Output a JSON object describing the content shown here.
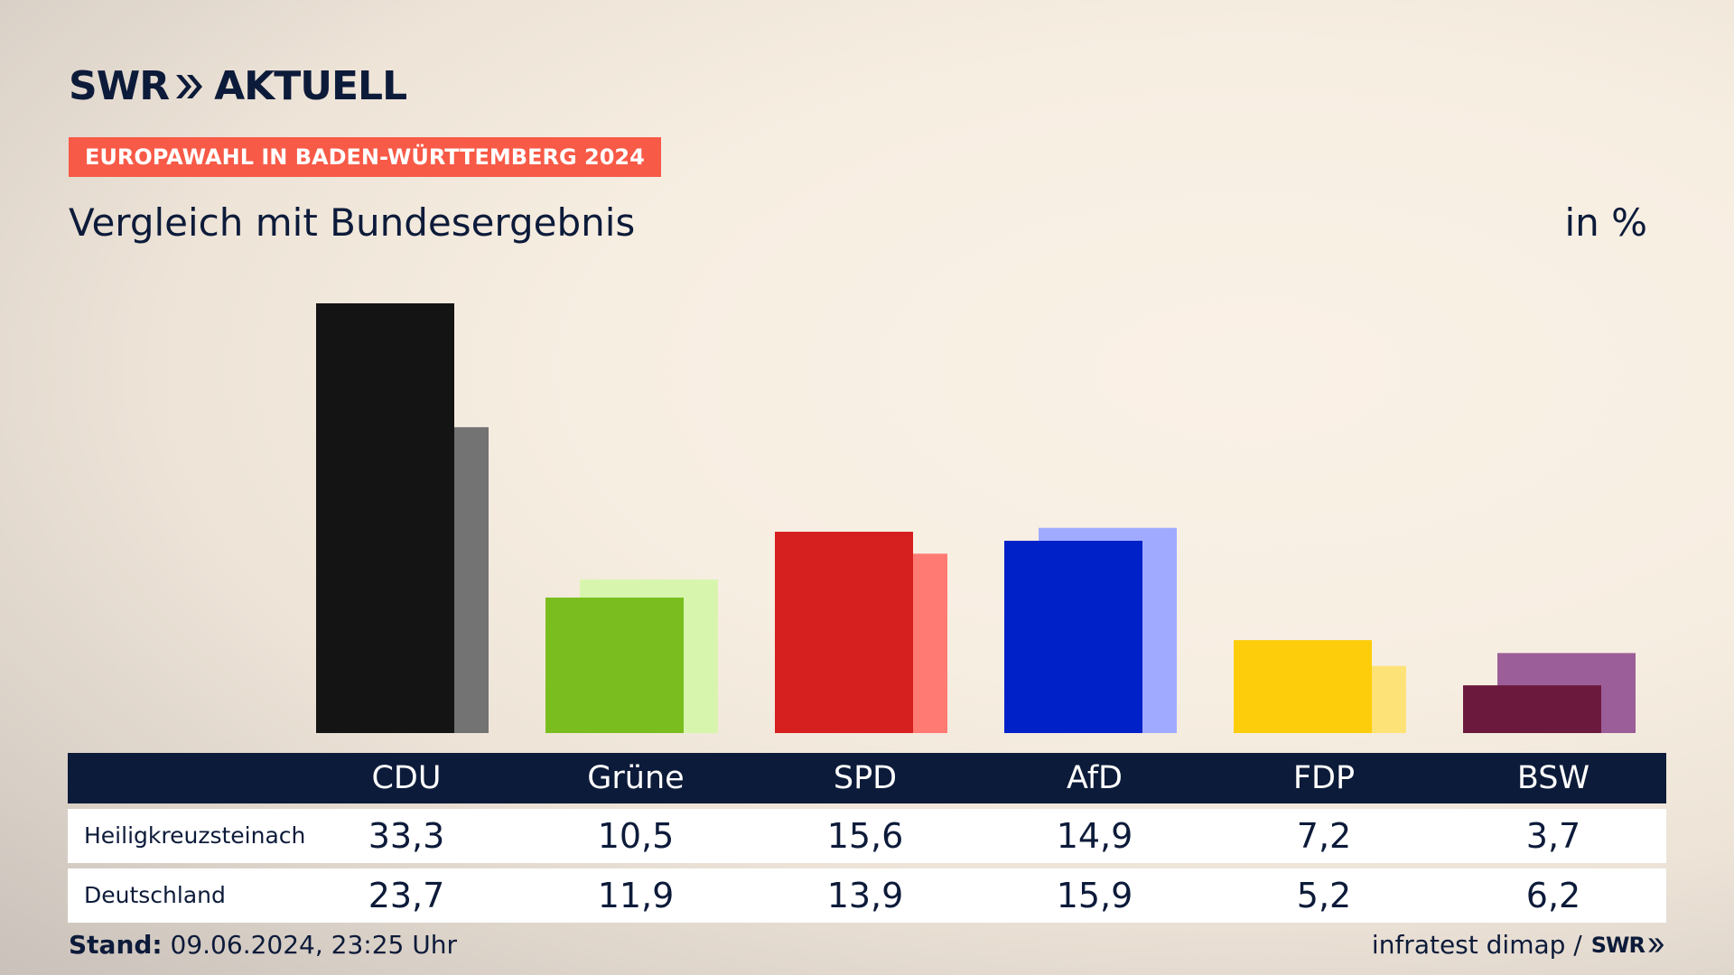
{
  "brand": {
    "logo_left": "SWR",
    "logo_right": "AKTUELL",
    "footer_logo": "SWR"
  },
  "badge": "EUROPAWAHL IN BADEN-WÜRTTEMBERG 2024",
  "title": "Vergleich mit Bundesergebnis",
  "unit": "in %",
  "footer": {
    "stand_label": "Stand:",
    "stand_value": "09.06.2024, 23:25 Uhr",
    "source": "infratest dimap /"
  },
  "colors": {
    "navy": "#0d1b3a",
    "badge": "#f75a47"
  },
  "chart_data": {
    "type": "bar",
    "categories": [
      "CDU",
      "Grüne",
      "SPD",
      "AfD",
      "FDP",
      "BSW"
    ],
    "series": [
      {
        "name": "Heiligkreuzsteinach",
        "values": [
          33.3,
          10.5,
          15.6,
          14.9,
          7.2,
          3.7
        ],
        "colors": [
          "#141414",
          "#79be1e",
          "#d61f1f",
          "#0020c8",
          "#fdcd0c",
          "#6b1a3e"
        ]
      },
      {
        "name": "Deutschland",
        "values": [
          23.7,
          11.9,
          13.9,
          15.9,
          5.2,
          6.2
        ],
        "colors": [
          "#737373",
          "#d8f5ae",
          "#ff7a72",
          "#a0abff",
          "#fde278",
          "#9c5e98"
        ]
      }
    ],
    "value_labels": [
      [
        "33,3",
        "10,5",
        "15,6",
        "14,9",
        "7,2",
        "3,7"
      ],
      [
        "23,7",
        "11,9",
        "13,9",
        "15,9",
        "5,2",
        "6,2"
      ]
    ],
    "ylim": [
      0,
      34
    ]
  }
}
